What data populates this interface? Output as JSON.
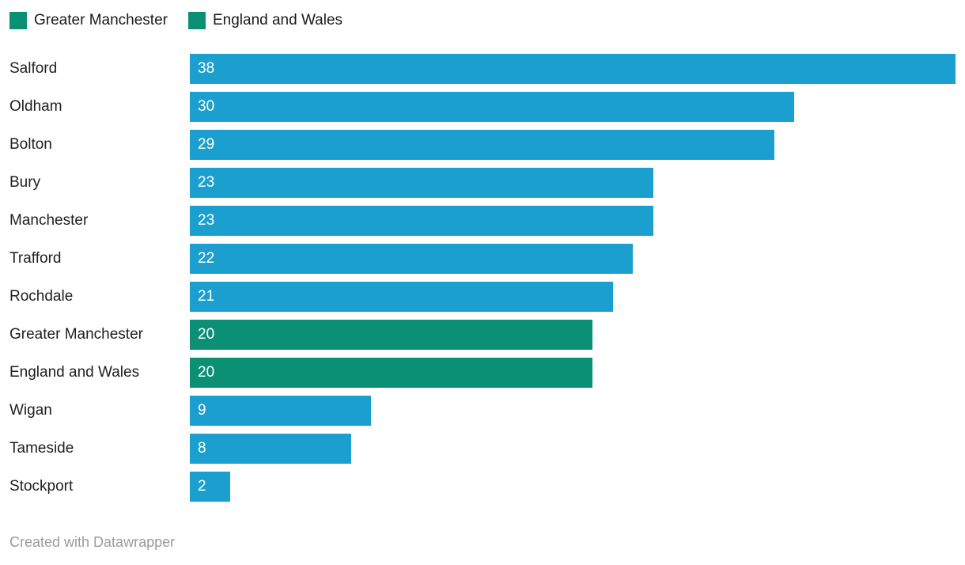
{
  "legend": [
    {
      "label": "Greater Manchester",
      "color": "#0b9076"
    },
    {
      "label": "England and Wales",
      "color": "#0b9076"
    }
  ],
  "chart_data": {
    "type": "bar",
    "orientation": "horizontal",
    "title": "",
    "xlabel": "",
    "ylabel": "",
    "xlim": [
      0,
      38
    ],
    "grid": false,
    "legend_position": "top",
    "categories": [
      "Salford",
      "Oldham",
      "Bolton",
      "Bury",
      "Manchester",
      "Trafford",
      "Rochdale",
      "Greater Manchester",
      "England and Wales",
      "Wigan",
      "Tameside",
      "Stockport"
    ],
    "values": [
      38,
      30,
      29,
      23,
      23,
      22,
      21,
      20,
      20,
      9,
      8,
      2
    ],
    "colors": [
      "#1b9fce",
      "#1b9fce",
      "#1b9fce",
      "#1b9fce",
      "#1b9fce",
      "#1b9fce",
      "#1b9fce",
      "#0b9076",
      "#0b9076",
      "#1b9fce",
      "#1b9fce",
      "#1b9fce"
    ],
    "accent_blue": "#1b9fce",
    "accent_green": "#0b9076",
    "value_label_color": "#ffffff"
  },
  "footer": {
    "credit": "Created with Datawrapper"
  }
}
